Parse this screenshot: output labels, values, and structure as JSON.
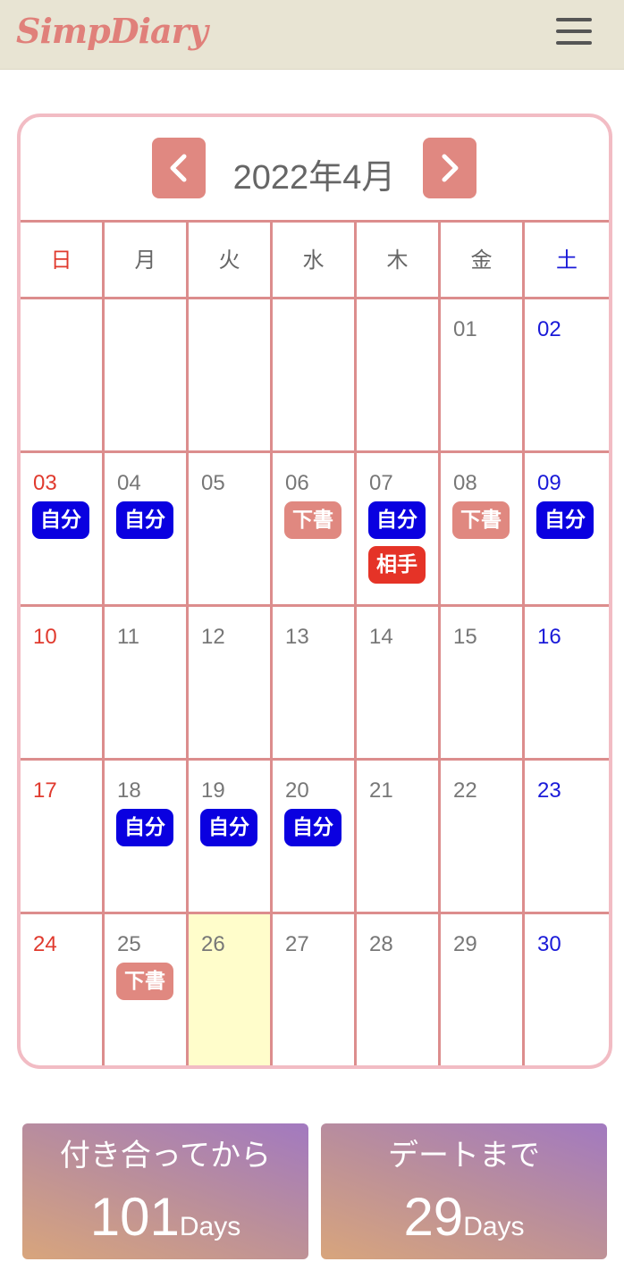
{
  "app": {
    "logo": "SimpDiary"
  },
  "header": {
    "menu_icon": "hamburger-icon"
  },
  "calendar": {
    "title": "2022年4月",
    "prev_icon": "chevron-left-icon",
    "next_icon": "chevron-right-icon",
    "weekdays": [
      "日",
      "月",
      "火",
      "水",
      "木",
      "金",
      "土"
    ],
    "weeks": [
      [
        {
          "day": "",
          "badges": []
        },
        {
          "day": "",
          "badges": []
        },
        {
          "day": "",
          "badges": []
        },
        {
          "day": "",
          "badges": []
        },
        {
          "day": "",
          "badges": []
        },
        {
          "day": "01",
          "badges": []
        },
        {
          "day": "02",
          "badges": []
        }
      ],
      [
        {
          "day": "03",
          "badges": [
            {
              "label": "自分",
              "kind": "self"
            }
          ]
        },
        {
          "day": "04",
          "badges": [
            {
              "label": "自分",
              "kind": "self"
            }
          ]
        },
        {
          "day": "05",
          "badges": []
        },
        {
          "day": "06",
          "badges": [
            {
              "label": "下書",
              "kind": "draft"
            }
          ]
        },
        {
          "day": "07",
          "badges": [
            {
              "label": "自分",
              "kind": "self"
            },
            {
              "label": "相手",
              "kind": "partner"
            }
          ]
        },
        {
          "day": "08",
          "badges": [
            {
              "label": "下書",
              "kind": "draft"
            }
          ]
        },
        {
          "day": "09",
          "badges": [
            {
              "label": "自分",
              "kind": "self"
            }
          ]
        }
      ],
      [
        {
          "day": "10",
          "badges": []
        },
        {
          "day": "11",
          "badges": []
        },
        {
          "day": "12",
          "badges": []
        },
        {
          "day": "13",
          "badges": []
        },
        {
          "day": "14",
          "badges": []
        },
        {
          "day": "15",
          "badges": []
        },
        {
          "day": "16",
          "badges": []
        }
      ],
      [
        {
          "day": "17",
          "badges": []
        },
        {
          "day": "18",
          "badges": [
            {
              "label": "自分",
              "kind": "self"
            }
          ]
        },
        {
          "day": "19",
          "badges": [
            {
              "label": "自分",
              "kind": "self"
            }
          ]
        },
        {
          "day": "20",
          "badges": [
            {
              "label": "自分",
              "kind": "self"
            }
          ]
        },
        {
          "day": "21",
          "badges": []
        },
        {
          "day": "22",
          "badges": []
        },
        {
          "day": "23",
          "badges": []
        }
      ],
      [
        {
          "day": "24",
          "badges": []
        },
        {
          "day": "25",
          "badges": [
            {
              "label": "下書",
              "kind": "draft"
            }
          ]
        },
        {
          "day": "26",
          "badges": [],
          "today": true
        },
        {
          "day": "27",
          "badges": []
        },
        {
          "day": "28",
          "badges": []
        },
        {
          "day": "29",
          "badges": []
        },
        {
          "day": "30",
          "badges": []
        }
      ]
    ]
  },
  "stats": {
    "since": {
      "title": "付き合ってから",
      "value": "101",
      "unit": "Days"
    },
    "until": {
      "title": "デートまで",
      "value": "29",
      "unit": "Days"
    }
  },
  "colors": {
    "header_bg": "#e8e4d3",
    "logo": "#e0807a",
    "grid_line": "#dc8d8d",
    "calendar_border": "#f2bcc4",
    "sunday": "#e03a2e",
    "saturday": "#1a1ad8",
    "badge_self": "#0a00e0",
    "badge_draft": "#e08880",
    "badge_partner": "#e53327",
    "today_bg": "#fffdcb"
  }
}
